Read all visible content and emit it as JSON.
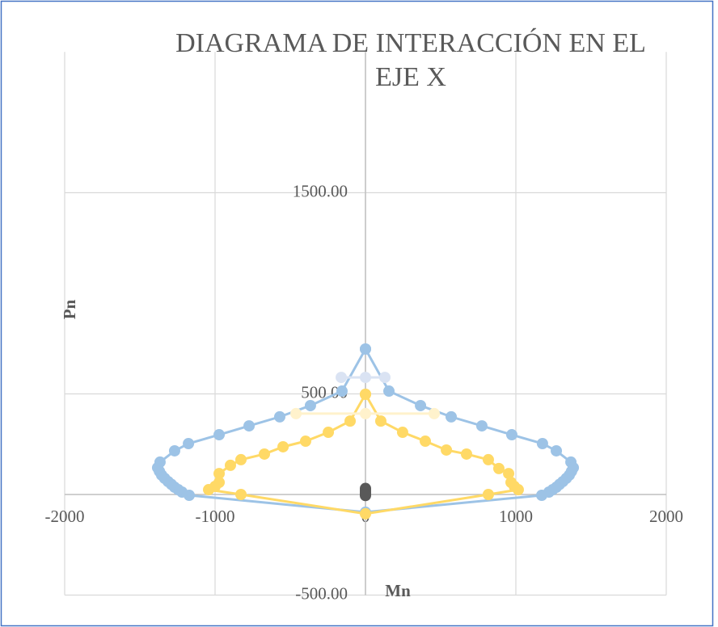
{
  "chart_data": {
    "type": "scatter",
    "title": "DIAGRAMA DE INTERACCIÓN EN EL EJE X",
    "x_label": "Mn",
    "y_label": "Pn",
    "xlim": [
      -2000,
      2000
    ],
    "xticks": [
      -2000,
      -1000,
      0,
      1000,
      2000
    ],
    "ylim": [
      -500,
      2200
    ],
    "yticks": [
      {
        "value": -500,
        "label": "-500.00"
      },
      {
        "value": 500,
        "label": "500.00"
      },
      {
        "value": 1500,
        "label": "1500.00"
      }
    ],
    "grid": true,
    "series": [
      {
        "color": "#9dc3e6",
        "x": [
          0,
          156,
          366,
          570,
          774,
          973,
          1177,
          1269,
          1366,
          1382,
          1370,
          1355,
          1335,
          1312,
          1290,
          1269,
          1245,
          1220,
          1172,
          0,
          -1172,
          -1220,
          -1245,
          -1269,
          -1290,
          -1312,
          -1335,
          -1355,
          -1370,
          -1382,
          -1366,
          -1269,
          -1177,
          -973,
          -774,
          -570,
          -366,
          -156,
          0
        ],
        "values": [
          723,
          514,
          442,
          386,
          341,
          297,
          253,
          217,
          161,
          133,
          115,
          96,
          80,
          64,
          50,
          36,
          24,
          12,
          -4,
          -88,
          -4,
          12,
          24,
          36,
          50,
          64,
          80,
          96,
          115,
          133,
          161,
          217,
          253,
          297,
          341,
          386,
          442,
          514,
          723
        ]
      },
      {
        "color": "#ffd966",
        "x": [
          0,
          102,
          247,
          398,
          538,
          672,
          817,
          887,
          952,
          968,
          990,
          1016,
          817,
          0,
          -828,
          -1043,
          -1000,
          -973,
          -973,
          -898,
          -828,
          -672,
          -548,
          -398,
          -247,
          -102,
          0
        ],
        "values": [
          498,
          365,
          309,
          265,
          221,
          201,
          173,
          129,
          104,
          60,
          40,
          24,
          0,
          -96,
          0,
          24,
          40,
          60,
          104,
          145,
          173,
          201,
          237,
          265,
          309,
          365,
          498
        ]
      },
      {
        "color": "#dae3f3",
        "x": [
          -161,
          0,
          129
        ],
        "values": [
          582,
          582,
          582
        ]
      },
      {
        "color": "#fff2cc",
        "x": [
          -462,
          0,
          457
        ],
        "values": [
          402,
          402,
          402
        ]
      },
      {
        "color": "#595959",
        "x": [
          0,
          0,
          0,
          0,
          0
        ],
        "values": [
          30,
          20,
          10,
          0,
          -5
        ],
        "line": false
      }
    ]
  }
}
